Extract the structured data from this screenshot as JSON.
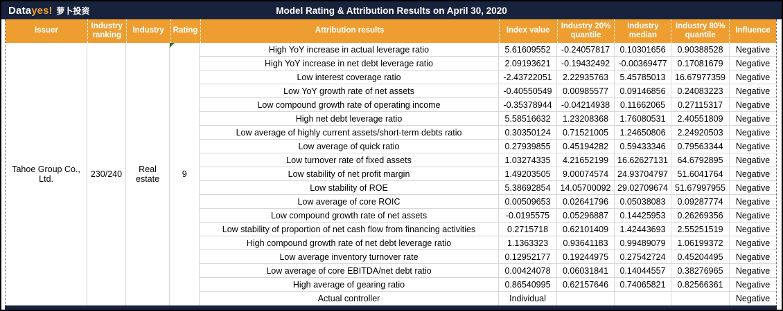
{
  "logo": {
    "brand_white": "Data",
    "brand_orange": "yes!",
    "brand_cn": "萝卜投资"
  },
  "header": {
    "title": "Model Rating & Attribution Results on April 30, 2020"
  },
  "columns": {
    "issuer": "Issuer",
    "industry_ranking": "Industry ranking",
    "industry": "Industry",
    "rating": "Rating",
    "attribution": "Attribution results",
    "index_value": "Index value",
    "q20": "Industry 20% quantile",
    "median": "Industry median",
    "q80": "Industry 80% quantile",
    "influence": "Influence"
  },
  "issuer": {
    "name": "Tahoe Group Co., Ltd.",
    "industry_ranking": "230/240",
    "industry": "Real estate",
    "rating": "9"
  },
  "rows": [
    {
      "attribution": "High YoY increase in actual leverage ratio",
      "index_value": "5.61609552",
      "q20": "-0.24057817",
      "median": "0.10301656",
      "q80": "0.90388528",
      "influence": "Negative"
    },
    {
      "attribution": "High YoY increase in net debt leverage ratio",
      "index_value": "2.09193621",
      "q20": "-0.19432492",
      "median": "-0.00369477",
      "q80": "0.17081679",
      "influence": "Negative"
    },
    {
      "attribution": "Low interest coverage ratio",
      "index_value": "-2.43722051",
      "q20": "2.22935763",
      "median": "5.45785013",
      "q80": "16.67977359",
      "influence": "Negative"
    },
    {
      "attribution": "Low YoY growth rate of net assets",
      "index_value": "-0.40550549",
      "q20": "0.00985577",
      "median": "0.09146856",
      "q80": "0.24083223",
      "influence": "Negative"
    },
    {
      "attribution": "Low compound growth rate of operating income",
      "index_value": "-0.35378944",
      "q20": "-0.04214938",
      "median": "0.11662065",
      "q80": "0.27115317",
      "influence": "Negative"
    },
    {
      "attribution": "High net debt leverage ratio",
      "index_value": "5.58516632",
      "q20": "1.23208368",
      "median": "1.76080531",
      "q80": "2.40551809",
      "influence": "Negative"
    },
    {
      "attribution": "Low average of highly current assets/short-term debts ratio",
      "index_value": "0.30350124",
      "q20": "0.71521005",
      "median": "1.24650806",
      "q80": "2.24920503",
      "influence": "Negative"
    },
    {
      "attribution": "Low average of quick ratio",
      "index_value": "0.27939855",
      "q20": "0.45194282",
      "median": "0.59433346",
      "q80": "0.79563344",
      "influence": "Negative"
    },
    {
      "attribution": "Low turnover rate of fixed assets",
      "index_value": "1.03274335",
      "q20": "4.21652199",
      "median": "16.62627131",
      "q80": "64.6792895",
      "influence": "Negative"
    },
    {
      "attribution": "Low stability of net profit margin",
      "index_value": "1.49203505",
      "q20": "9.00074574",
      "median": "24.93704797",
      "q80": "51.6041764",
      "influence": "Negative"
    },
    {
      "attribution": "Low stability of ROE",
      "index_value": "5.38692854",
      "q20": "14.05700092",
      "median": "29.02709674",
      "q80": "51.67997955",
      "influence": "Negative"
    },
    {
      "attribution": "Low average of core ROIC",
      "index_value": "0.00509653",
      "q20": "0.02641796",
      "median": "0.05038083",
      "q80": "0.09287774",
      "influence": "Negative"
    },
    {
      "attribution": "Low compound growth rate of net assets",
      "index_value": "-0.0195575",
      "q20": "0.05296887",
      "median": "0.14425953",
      "q80": "0.26269356",
      "influence": "Negative"
    },
    {
      "attribution": "Low stability of proportion of net cash flow from financing activities",
      "index_value": "0.2715718",
      "q20": "0.62101409",
      "median": "1.42443693",
      "q80": "2.55251519",
      "influence": "Negative"
    },
    {
      "attribution": "High compound growth rate of net debt leverage ratio",
      "index_value": "1.1363323",
      "q20": "0.93641183",
      "median": "0.99489079",
      "q80": "1.06199372",
      "influence": "Negative"
    },
    {
      "attribution": "Low average inventory turnover rate",
      "index_value": "0.12952177",
      "q20": "0.19244975",
      "median": "0.27542724",
      "q80": "0.45204495",
      "influence": "Negative"
    },
    {
      "attribution": "Low average of core EBITDA/net debt ratio",
      "index_value": "0.00424078",
      "q20": "0.06031841",
      "median": "0.14044557",
      "q80": "0.38276965",
      "influence": "Negative"
    },
    {
      "attribution": "High average of gearing ratio",
      "index_value": "0.86540995",
      "q20": "0.62157646",
      "median": "0.74065821",
      "q80": "0.82566361",
      "influence": "Negative"
    },
    {
      "attribution": "Actual controller",
      "index_value": "Individual",
      "q20": "",
      "median": "",
      "q80": "",
      "influence": "Negative"
    }
  ],
  "colors": {
    "navy": "#17233C",
    "orange": "#EE9E31",
    "green-text": "#00B050",
    "triangle-green": "#1E7B34",
    "gridline": "#D6D6D6"
  }
}
